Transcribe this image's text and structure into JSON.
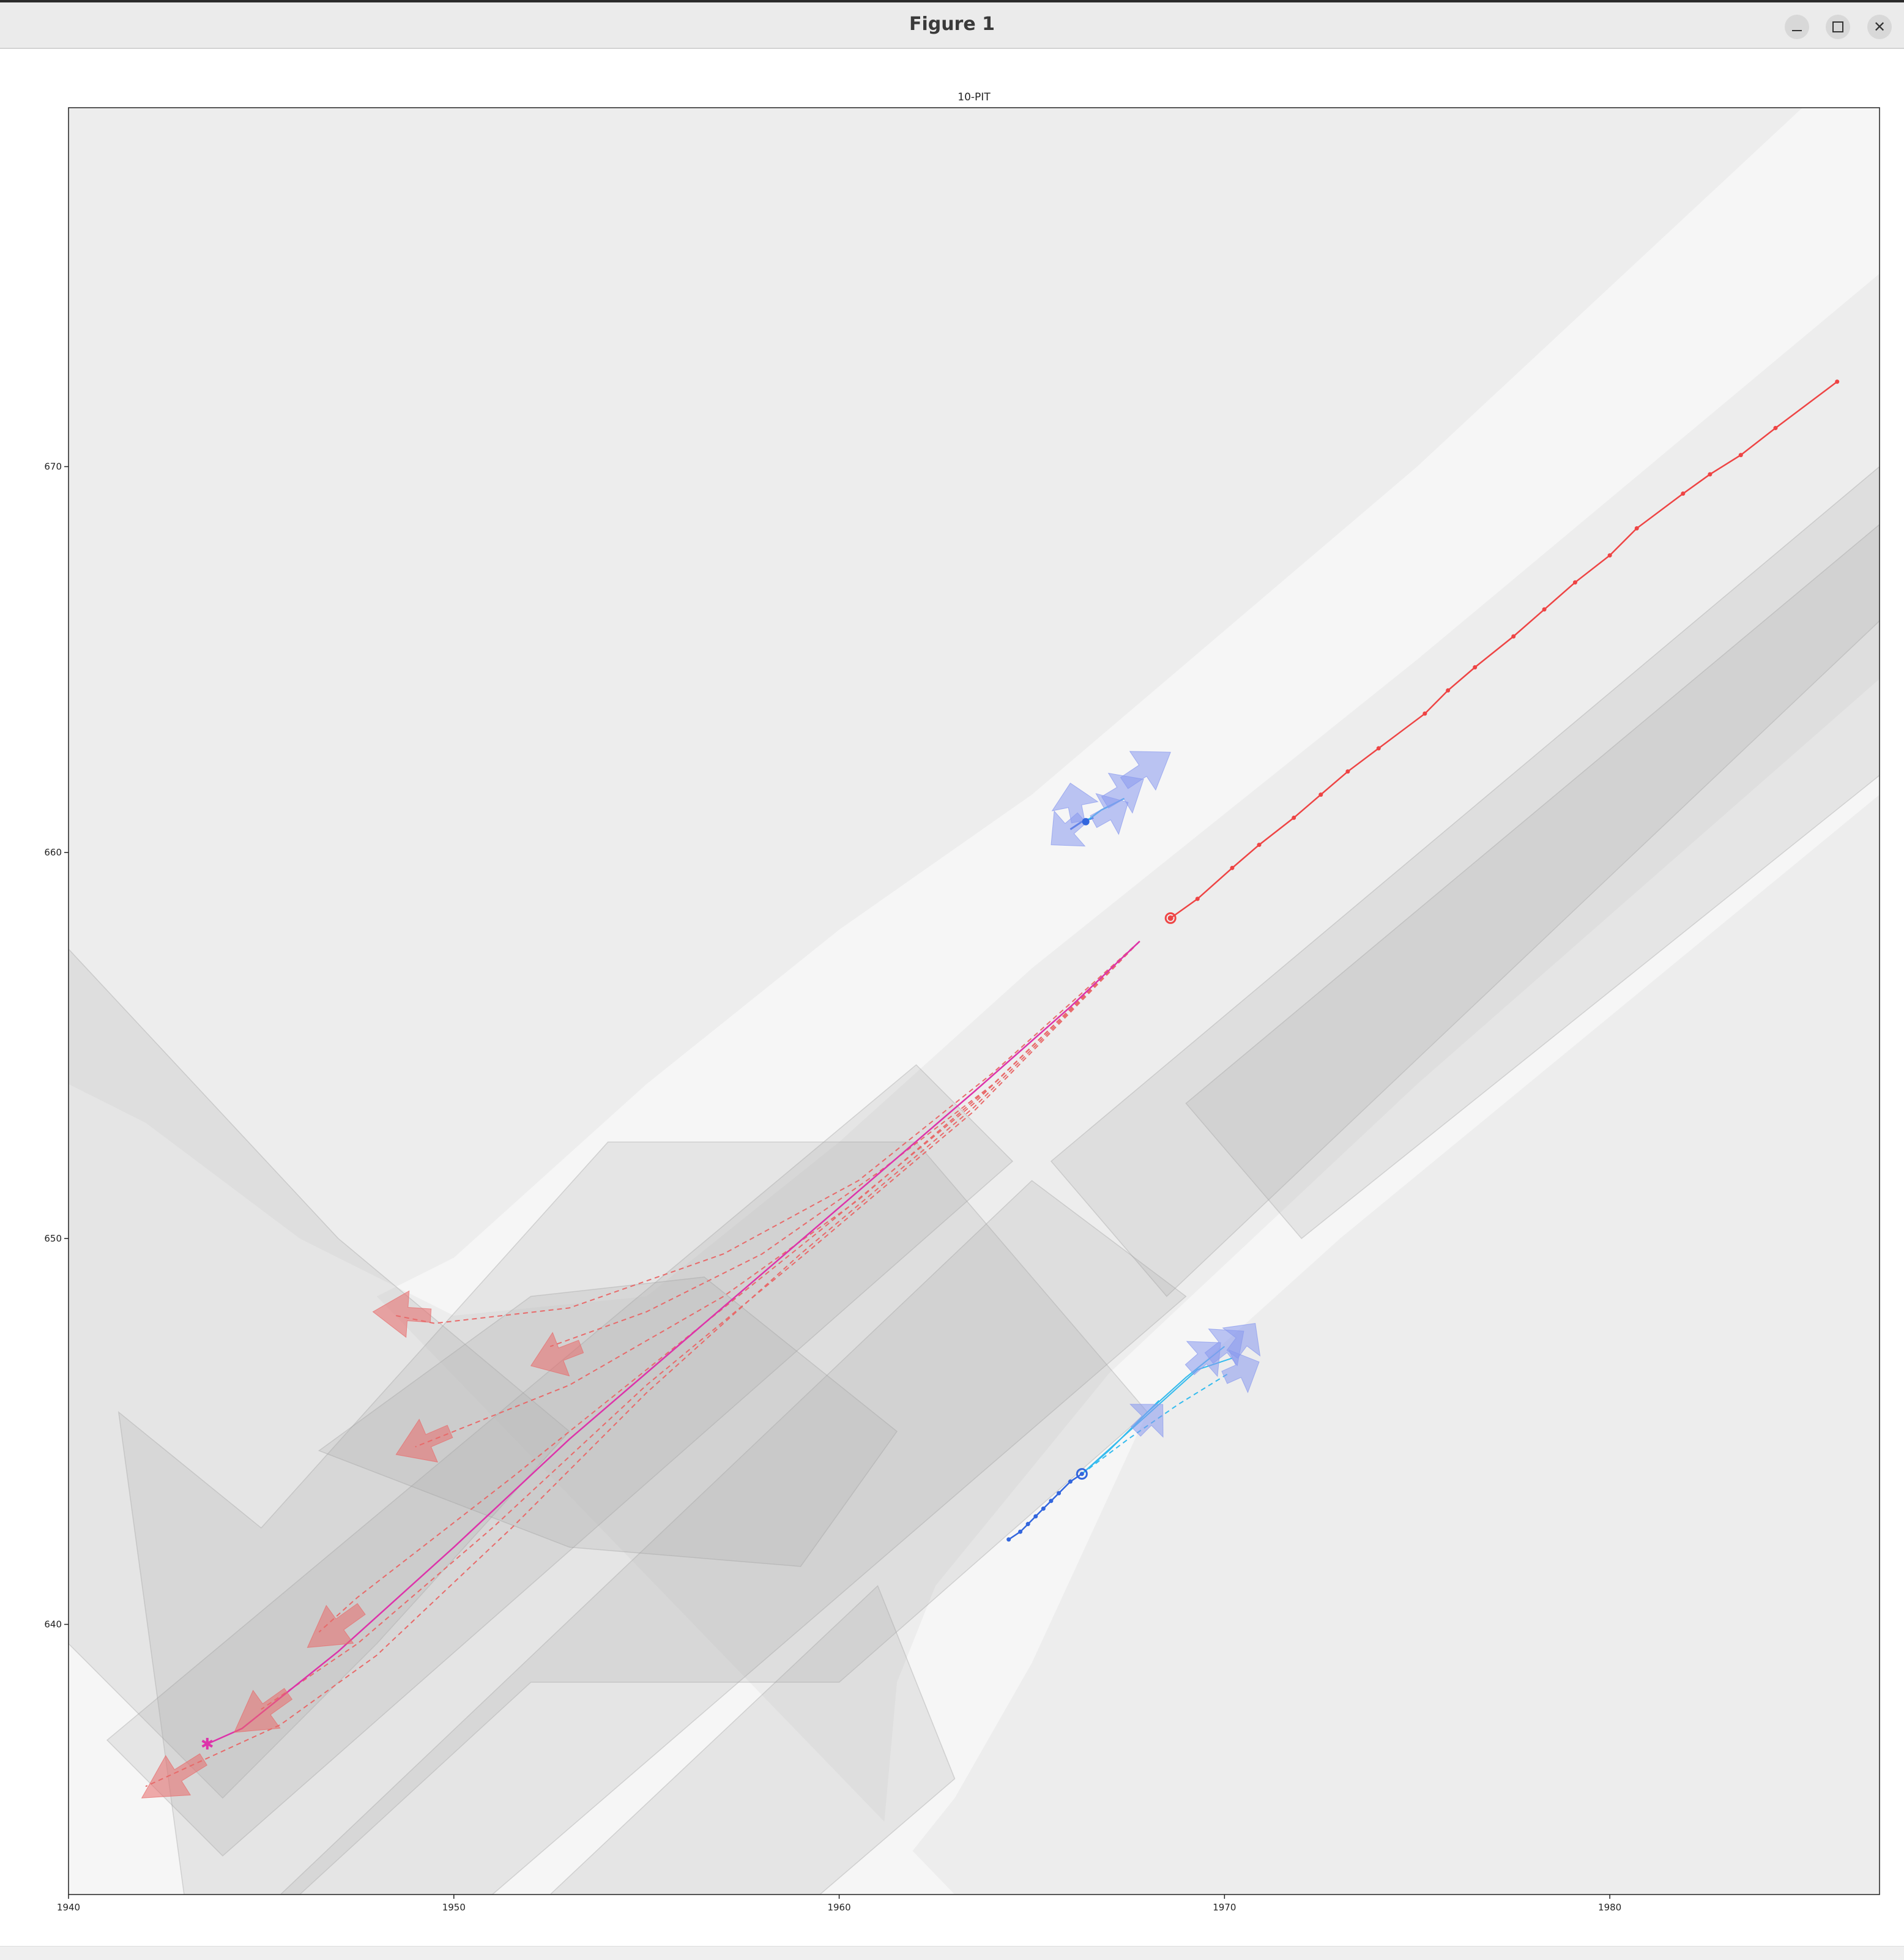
{
  "window": {
    "title": "Figure 1"
  },
  "colors": {
    "background": "#ffffff",
    "map_base": "#ededed",
    "road_gray": "#aaaaaa",
    "sidewalk": "#f6f6f6",
    "ego_red": "#ee4444",
    "pred_red": "#e86a6a",
    "magenta": "#dd33aa",
    "agent_blue": "#3366dd",
    "agent_cyan": "#33bbee",
    "arrow_blue": "#8899ee"
  },
  "chart_data": {
    "type": "scatter",
    "title": "10-PIT",
    "xlabel": "",
    "ylabel": "",
    "xlim": [
      1940,
      1987
    ],
    "ylim": [
      633.0,
      679.3
    ],
    "xticks": [
      1940,
      1950,
      1960,
      1970,
      1980
    ],
    "yticks": [
      640,
      650,
      660,
      670
    ],
    "grid": false,
    "ego_history": {
      "name": "",
      "points": [
        [
          1968.6,
          658.3
        ],
        [
          1969.3,
          658.8
        ],
        [
          1970.2,
          659.6
        ],
        [
          1970.9,
          660.2
        ],
        [
          1971.8,
          660.9
        ],
        [
          1972.5,
          661.5
        ],
        [
          1973.2,
          662.1
        ],
        [
          1974.0,
          662.7
        ],
        [
          1975.2,
          663.6
        ],
        [
          1975.8,
          664.2
        ],
        [
          1976.5,
          664.8
        ],
        [
          1977.5,
          665.6
        ],
        [
          1978.3,
          666.3
        ],
        [
          1979.1,
          667.0
        ],
        [
          1980.0,
          667.7
        ],
        [
          1980.7,
          668.4
        ],
        [
          1981.9,
          669.3
        ],
        [
          1982.6,
          669.8
        ],
        [
          1983.4,
          670.3
        ],
        [
          1984.3,
          671.0
        ],
        [
          1985.9,
          672.2
        ]
      ]
    },
    "ego_future_gt": {
      "name": "",
      "points": [
        [
          1967.8,
          657.7
        ],
        [
          1966.0,
          656.0
        ],
        [
          1963.5,
          653.8
        ],
        [
          1960.0,
          650.8
        ],
        [
          1956.5,
          647.8
        ],
        [
          1953.0,
          644.8
        ],
        [
          1950.0,
          642.0
        ],
        [
          1947.0,
          639.3
        ],
        [
          1944.5,
          637.3
        ],
        [
          1943.6,
          636.9
        ]
      ]
    },
    "ego_end_marker": [
      1943.6,
      636.9
    ],
    "ego_predictions": [
      {
        "points": [
          [
            1967.8,
            657.7
          ],
          [
            1964.0,
            654.3
          ],
          [
            1960.5,
            651.5
          ],
          [
            1957.0,
            649.6
          ],
          [
            1953.0,
            648.2
          ],
          [
            1949.5,
            647.8
          ],
          [
            1948.5,
            648.0
          ]
        ]
      },
      {
        "points": [
          [
            1967.8,
            657.7
          ],
          [
            1964.0,
            654.0
          ],
          [
            1961.0,
            651.7
          ],
          [
            1958.0,
            649.6
          ],
          [
            1955.0,
            648.1
          ],
          [
            1952.5,
            647.2
          ]
        ]
      },
      {
        "points": [
          [
            1967.8,
            657.7
          ],
          [
            1964.0,
            654.0
          ],
          [
            1960.5,
            651.0
          ],
          [
            1957.0,
            648.5
          ],
          [
            1953.0,
            646.2
          ],
          [
            1949.0,
            644.6
          ]
        ]
      },
      {
        "points": [
          [
            1967.8,
            657.7
          ],
          [
            1963.5,
            653.5
          ],
          [
            1959.5,
            650.2
          ],
          [
            1955.5,
            647.0
          ],
          [
            1951.5,
            643.8
          ],
          [
            1947.5,
            640.7
          ],
          [
            1946.5,
            639.8
          ]
        ]
      },
      {
        "points": [
          [
            1967.8,
            657.7
          ],
          [
            1963.5,
            653.3
          ],
          [
            1959.0,
            649.5
          ],
          [
            1955.0,
            646.2
          ],
          [
            1951.0,
            642.5
          ],
          [
            1947.5,
            639.5
          ],
          [
            1945.0,
            637.8
          ]
        ]
      },
      {
        "points": [
          [
            1967.8,
            657.7
          ],
          [
            1963.5,
            653.4
          ],
          [
            1959.0,
            649.6
          ],
          [
            1955.0,
            646.0
          ],
          [
            1951.5,
            642.5
          ],
          [
            1948.0,
            639.2
          ],
          [
            1945.5,
            637.4
          ],
          [
            1942.0,
            635.8
          ]
        ]
      }
    ],
    "ego_pred_arrows": [
      {
        "x": 1949.4,
        "y": 648.0,
        "dx": -1.5,
        "dy": 0.1
      },
      {
        "x": 1953.3,
        "y": 647.2,
        "dx": -1.3,
        "dy": -0.5
      },
      {
        "x": 1949.9,
        "y": 645.0,
        "dx": -1.4,
        "dy": -0.6
      },
      {
        "x": 1947.6,
        "y": 640.4,
        "dx": -1.4,
        "dy": -1.0
      },
      {
        "x": 1945.7,
        "y": 638.2,
        "dx": -1.4,
        "dy": -1.0
      },
      {
        "x": 1943.5,
        "y": 636.5,
        "dx": -1.6,
        "dy": -1.0
      }
    ],
    "agent_1": {
      "current": [
        1966.4,
        660.8
      ],
      "history": [
        [
          1966.0,
          660.6
        ],
        [
          1966.3,
          660.8
        ],
        [
          1966.6,
          660.9
        ]
      ],
      "future": [
        [
          1966.4,
          660.8
        ],
        [
          1966.8,
          661.1
        ],
        [
          1967.2,
          661.3
        ],
        [
          1967.4,
          661.4
        ]
      ],
      "arrows": [
        {
          "x": 1967.4,
          "y": 661.8,
          "dx": 1.2,
          "dy": 0.8
        },
        {
          "x": 1966.9,
          "y": 661.3,
          "dx": 1.0,
          "dy": 0.6
        },
        {
          "x": 1966.3,
          "y": 660.9,
          "dx": -0.8,
          "dy": -0.7
        },
        {
          "x": 1966.2,
          "y": 660.8,
          "dx": -0.2,
          "dy": 1.0
        },
        {
          "x": 1966.6,
          "y": 660.8,
          "dx": 0.9,
          "dy": 0.5
        }
      ]
    },
    "agent_2": {
      "current": [
        1966.3,
        643.9
      ],
      "history": [
        [
          1964.4,
          642.2
        ],
        [
          1964.7,
          642.4
        ],
        [
          1964.9,
          642.6
        ],
        [
          1965.1,
          642.8
        ],
        [
          1965.3,
          643.0
        ],
        [
          1965.5,
          643.2
        ],
        [
          1965.7,
          643.4
        ],
        [
          1966.0,
          643.7
        ],
        [
          1966.3,
          643.9
        ]
      ],
      "futures": [
        {
          "points": [
            [
              1966.3,
              643.9
            ],
            [
              1967.2,
              644.7
            ],
            [
              1968.0,
              645.5
            ],
            [
              1969.0,
              646.4
            ],
            [
              1970.0,
              647.2
            ]
          ]
        },
        {
          "points": [
            [
              1966.3,
              643.9
            ],
            [
              1967.3,
              644.8
            ],
            [
              1968.3,
              645.7
            ],
            [
              1969.3,
              646.6
            ],
            [
              1970.2,
              646.9
            ]
          ]
        },
        {
          "points": [
            [
              1966.3,
              643.9
            ],
            [
              1967.0,
              644.5
            ],
            [
              1967.8,
              645.3
            ],
            [
              1968.3,
              645.8
            ]
          ]
        },
        {
          "points": [
            [
              1966.3,
              643.9
            ],
            [
              1967.5,
              644.8
            ],
            [
              1968.8,
              645.7
            ],
            [
              1970.1,
              646.5
            ]
          ]
        }
      ],
      "arrows": [
        {
          "x": 1969.6,
          "y": 646.9,
          "dx": 0.9,
          "dy": 0.7
        },
        {
          "x": 1969.1,
          "y": 646.6,
          "dx": 0.8,
          "dy": 0.7
        },
        {
          "x": 1970.0,
          "y": 646.4,
          "dx": 0.9,
          "dy": 0.4
        },
        {
          "x": 1967.7,
          "y": 645.0,
          "dx": 0.7,
          "dy": 0.7
        },
        {
          "x": 1970.2,
          "y": 647.0,
          "dx": 0.6,
          "dy": 0.8
        }
      ]
    },
    "map_sidewalks": [
      [
        [
          1963.0,
          633.0
        ],
        [
          1940.0,
          633.0
        ],
        [
          1940.0,
          654.0
        ],
        [
          1942.0,
          653.0
        ],
        [
          1946.0,
          650.0
        ],
        [
          1950.0,
          648.0
        ],
        [
          1955.0,
          648.5
        ],
        [
          1960.0,
          652.5
        ],
        [
          1965.0,
          657.0
        ],
        [
          1970.0,
          661.0
        ],
        [
          1975.0,
          665.0
        ],
        [
          1987.0,
          675.0
        ],
        [
          1987.0,
          679.3
        ],
        [
          1985.0,
          679.3
        ],
        [
          1975.0,
          670.0
        ],
        [
          1965.0,
          661.5
        ],
        [
          1960.0,
          658.0
        ],
        [
          1955.0,
          654.0
        ],
        [
          1950.0,
          649.5
        ],
        [
          1948.0,
          648.5
        ]
      ],
      [
        [
          1940.0,
          646.0
        ],
        [
          1942.0,
          643.5
        ],
        [
          1943.5,
          641.0
        ],
        [
          1943.0,
          638.0
        ],
        [
          1940.0,
          636.0
        ]
      ],
      [
        [
          1961.0,
          633.0
        ],
        [
          1963.0,
          635.5
        ],
        [
          1965.0,
          639.0
        ],
        [
          1968.0,
          645.5
        ],
        [
          1973.0,
          650.0
        ],
        [
          1987.0,
          661.5
        ],
        [
          1987.0,
          664.5
        ],
        [
          1975.0,
          654.0
        ],
        [
          1967.0,
          646.5
        ],
        [
          1962.5,
          641.0
        ],
        [
          1961.5,
          638.5
        ]
      ]
    ],
    "map_lanes": [
      [
        [
          1940.0,
          657.5
        ],
        [
          1947.0,
          650.0
        ],
        [
          1953.0,
          645.0
        ],
        [
          1948.0,
          639.5
        ],
        [
          1944.0,
          635.5
        ],
        [
          1940.0,
          639.5
        ]
      ],
      [
        [
          1941.3,
          645.5
        ],
        [
          1945.0,
          642.5
        ],
        [
          1954.0,
          652.5
        ],
        [
          1962.0,
          652.5
        ],
        [
          1968.0,
          645.5
        ],
        [
          1960.0,
          638.5
        ],
        [
          1952.0,
          638.5
        ],
        [
          1946.0,
          633.0
        ],
        [
          1943.0,
          633.0
        ]
      ],
      [
        [
          1941.0,
          637.0
        ],
        [
          1962.0,
          654.5
        ],
        [
          1964.5,
          652.0
        ],
        [
          1944.0,
          634.0
        ]
      ],
      [
        [
          1945.5,
          633.0
        ],
        [
          1965.0,
          651.5
        ],
        [
          1969.0,
          648.5
        ],
        [
          1951.0,
          633.0
        ]
      ],
      [
        [
          1952.5,
          633.0
        ],
        [
          1961.0,
          641.0
        ],
        [
          1963.0,
          636.0
        ],
        [
          1959.5,
          633.0
        ]
      ],
      [
        [
          1965.5,
          652.0
        ],
        [
          1987.0,
          670.0
        ],
        [
          1987.0,
          666.0
        ],
        [
          1968.5,
          648.5
        ]
      ],
      [
        [
          1969.0,
          653.5
        ],
        [
          1987.0,
          668.5
        ],
        [
          1987.0,
          662.0
        ],
        [
          1972.0,
          650.0
        ]
      ],
      [
        [
          1946.5,
          644.5
        ],
        [
          1952.0,
          648.5
        ],
        [
          1956.5,
          649.0
        ],
        [
          1961.5,
          645.0
        ],
        [
          1959.0,
          641.5
        ],
        [
          1953.0,
          642.0
        ]
      ]
    ]
  }
}
